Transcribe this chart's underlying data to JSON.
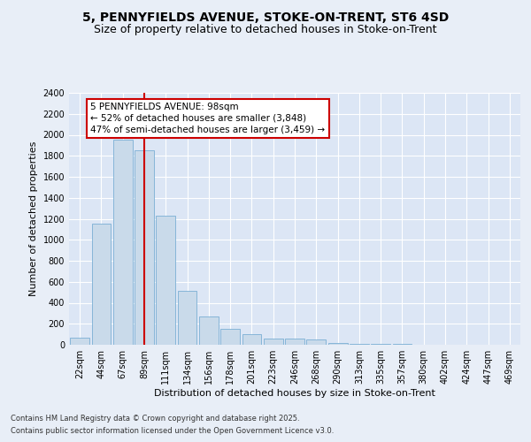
{
  "title_line1": "5, PENNYFIELDS AVENUE, STOKE-ON-TRENT, ST6 4SD",
  "title_line2": "Size of property relative to detached houses in Stoke-on-Trent",
  "xlabel": "Distribution of detached houses by size in Stoke-on-Trent",
  "ylabel": "Number of detached properties",
  "categories": [
    "22sqm",
    "44sqm",
    "67sqm",
    "89sqm",
    "111sqm",
    "134sqm",
    "156sqm",
    "178sqm",
    "201sqm",
    "223sqm",
    "246sqm",
    "268sqm",
    "290sqm",
    "313sqm",
    "335sqm",
    "357sqm",
    "380sqm",
    "402sqm",
    "424sqm",
    "447sqm",
    "469sqm"
  ],
  "values": [
    70,
    1150,
    1950,
    1850,
    1230,
    510,
    270,
    150,
    100,
    60,
    55,
    50,
    20,
    10,
    5,
    5,
    3,
    2,
    1,
    1,
    1
  ],
  "bar_color": "#c9daea",
  "bar_edge_color": "#7aafd4",
  "vline_x": 3,
  "vline_color": "#cc0000",
  "annotation_text": "5 PENNYFIELDS AVENUE: 98sqm\n← 52% of detached houses are smaller (3,848)\n47% of semi-detached houses are larger (3,459) →",
  "annotation_box_color": "#ffffff",
  "annotation_box_edge": "#cc0000",
  "ylim": [
    0,
    2400
  ],
  "yticks": [
    0,
    200,
    400,
    600,
    800,
    1000,
    1200,
    1400,
    1600,
    1800,
    2000,
    2200,
    2400
  ],
  "background_color": "#e8eef7",
  "plot_bg_color": "#dce6f5",
  "footer_line1": "Contains HM Land Registry data © Crown copyright and database right 2025.",
  "footer_line2": "Contains public sector information licensed under the Open Government Licence v3.0.",
  "title_fontsize": 10,
  "subtitle_fontsize": 9,
  "axis_label_fontsize": 8,
  "tick_fontsize": 7,
  "annotation_fontsize": 7.5,
  "footer_fontsize": 6
}
